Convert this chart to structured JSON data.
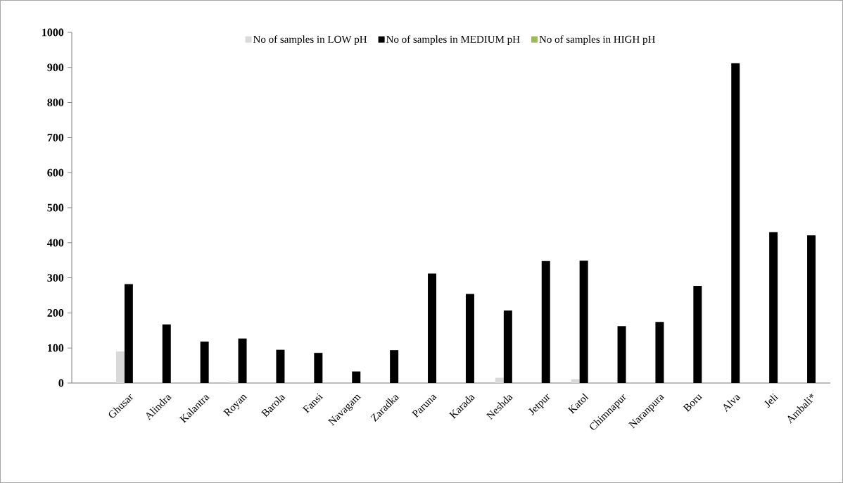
{
  "chart_data": {
    "type": "bar",
    "categories": [
      null,
      "Ghusar",
      "Alindra",
      "Kalantra",
      "Royan",
      "Barola",
      "Fansi",
      "Navagam",
      "Zaradka",
      "Paruna",
      "Karada",
      "Neshda",
      "Jetpur",
      "Katol",
      "Chimnapur",
      "Naranpura",
      "Boru",
      "Alva",
      "Jeli",
      "Ambali*"
    ],
    "series": [
      {
        "name": "No of samples in LOW pH",
        "color": "#d9d9d9",
        "values": [
          null,
          90,
          0,
          0,
          4,
          0,
          0,
          0,
          0,
          0,
          0,
          15,
          0,
          11,
          0,
          0,
          null,
          0,
          0,
          0
        ]
      },
      {
        "name": "No of samples in MEDIUM pH",
        "color": "#000000",
        "values": [
          null,
          282,
          167,
          118,
          127,
          95,
          86,
          33,
          94,
          312,
          254,
          207,
          348,
          349,
          162,
          174,
          277,
          912,
          430,
          421
        ]
      },
      {
        "name": "No of samples in HIGH pH",
        "color": "#9bbb59",
        "values": [
          null,
          0,
          0,
          0,
          0,
          0,
          0,
          0,
          0,
          0,
          0,
          0,
          0,
          0,
          0,
          0,
          0,
          0,
          0,
          0
        ]
      }
    ],
    "ylim": [
      0,
      1000
    ],
    "yticks": [
      0,
      100,
      200,
      300,
      400,
      500,
      600,
      700,
      800,
      900,
      1000
    ],
    "legend": "top",
    "grid": false
  }
}
